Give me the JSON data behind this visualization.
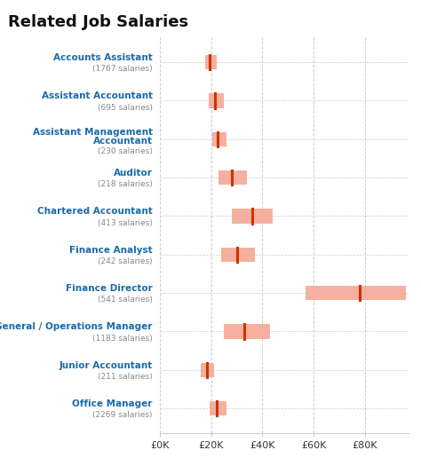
{
  "title": "Related Job Salaries",
  "professions": [
    {
      "name": "Accounts Assistant",
      "count": 1767,
      "median": 19500,
      "low": 17500,
      "high": 22000
    },
    {
      "name": "Assistant Accountant",
      "count": 695,
      "median": 21500,
      "low": 19000,
      "high": 25000
    },
    {
      "name": "Assistant Management\nAccountant",
      "count": 230,
      "median": 22500,
      "low": 20500,
      "high": 26000
    },
    {
      "name": "Auditor",
      "count": 218,
      "median": 28000,
      "low": 23000,
      "high": 34000
    },
    {
      "name": "Chartered Accountant",
      "count": 413,
      "median": 36000,
      "low": 28000,
      "high": 44000
    },
    {
      "name": "Finance Analyst",
      "count": 242,
      "median": 30000,
      "low": 24000,
      "high": 37000
    },
    {
      "name": "Finance Director",
      "count": 541,
      "median": 78000,
      "low": 57000,
      "high": 96000
    },
    {
      "name": "General / Operations Manager",
      "count": 1183,
      "median": 33000,
      "low": 25000,
      "high": 43000
    },
    {
      "name": "Junior Accountant",
      "count": 211,
      "median": 18500,
      "low": 16000,
      "high": 21000
    },
    {
      "name": "Office Manager",
      "count": 2269,
      "median": 22000,
      "low": 19500,
      "high": 26000
    }
  ],
  "xlim": [
    0,
    97000
  ],
  "xticks": [
    0,
    20000,
    40000,
    60000,
    80000
  ],
  "xticklabels": [
    "£0K",
    "£20K",
    "£40K",
    "£60K",
    "£80K"
  ],
  "bar_color": "#f4a896",
  "median_color": "#cc3300",
  "label_color": "#1a6aad",
  "count_color": "#888888",
  "background_color": "#ffffff",
  "grid_color": "#cccccc",
  "title_fontsize": 13,
  "label_fontsize": 7.5,
  "count_fontsize": 6.5,
  "bar_height": 0.38
}
